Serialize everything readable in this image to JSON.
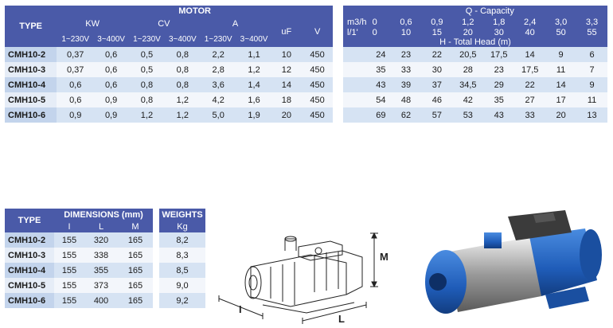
{
  "motor_table": {
    "type_label": "TYPE",
    "motor_label": "MOTOR",
    "kw_label": "KW",
    "cv_label": "CV",
    "a_label": "A",
    "uf_label": "uF",
    "v_label": "V",
    "sub_headers": [
      "1~230V",
      "3~400V",
      "1~230V",
      "3~400V",
      "1~230V",
      "3~400V"
    ],
    "rows": [
      {
        "type": "CMH10-2",
        "kw1": "0,37",
        "kw3": "0,6",
        "cv1": "0,5",
        "cv3": "0,8",
        "a1": "2,2",
        "a3": "1,1",
        "uf": "10",
        "v": "450"
      },
      {
        "type": "CMH10-3",
        "kw1": "0,37",
        "kw3": "0,6",
        "cv1": "0,5",
        "cv3": "0,8",
        "a1": "2,8",
        "a3": "1,2",
        "uf": "12",
        "v": "450"
      },
      {
        "type": "CMH10-4",
        "kw1": "0,6",
        "kw3": "0,6",
        "cv1": "0,8",
        "cv3": "0,8",
        "a1": "3,6",
        "a3": "1,4",
        "uf": "14",
        "v": "450"
      },
      {
        "type": "CMH10-5",
        "kw1": "0,6",
        "kw3": "0,9",
        "cv1": "0,8",
        "cv3": "1,2",
        "a1": "4,2",
        "a3": "1,6",
        "uf": "18",
        "v": "450"
      },
      {
        "type": "CMH10-6",
        "kw1": "0,9",
        "kw3": "0,9",
        "cv1": "1,2",
        "cv3": "1,2",
        "a1": "5,0",
        "a3": "1,9",
        "uf": "20",
        "v": "450"
      }
    ]
  },
  "capacity_table": {
    "title": "Q - Capacity",
    "unit1": "m3/h",
    "unit2": "l/1'",
    "head_label": "H - Total Head (m)",
    "q_m3h": [
      "0",
      "0,6",
      "0,9",
      "1,2",
      "1,8",
      "2,4",
      "3,0",
      "3,3"
    ],
    "q_lmin": [
      "0",
      "10",
      "15",
      "20",
      "30",
      "40",
      "50",
      "55"
    ],
    "rows": [
      [
        "24",
        "23",
        "22",
        "20,5",
        "17,5",
        "14",
        "9",
        "6"
      ],
      [
        "35",
        "33",
        "30",
        "28",
        "23",
        "17,5",
        "11",
        "7"
      ],
      [
        "43",
        "39",
        "37",
        "34,5",
        "29",
        "22",
        "14",
        "9"
      ],
      [
        "54",
        "48",
        "46",
        "42",
        "35",
        "27",
        "17",
        "11"
      ],
      [
        "69",
        "62",
        "57",
        "53",
        "43",
        "33",
        "20",
        "13"
      ]
    ]
  },
  "dim_table": {
    "type_label": "TYPE",
    "dims_label": "DIMENSIONS (mm)",
    "i_label": "I",
    "l_label": "L",
    "m_label": "M",
    "rows": [
      {
        "type": "CMH10-2",
        "i": "155",
        "l": "320",
        "m": "165"
      },
      {
        "type": "CMH10-3",
        "i": "155",
        "l": "338",
        "m": "165"
      },
      {
        "type": "CMH10-4",
        "i": "155",
        "l": "355",
        "m": "165"
      },
      {
        "type": "CMH10-5",
        "i": "155",
        "l": "373",
        "m": "165"
      },
      {
        "type": "CMH10-6",
        "i": "155",
        "l": "400",
        "m": "165"
      }
    ]
  },
  "weight_table": {
    "label1": "WEIGHTS",
    "label2": "Kg",
    "values": [
      "8,2",
      "8,3",
      "8,5",
      "9,0",
      "9,2"
    ]
  },
  "diagram": {
    "label_i": "I",
    "label_l": "L",
    "label_m": "M"
  }
}
